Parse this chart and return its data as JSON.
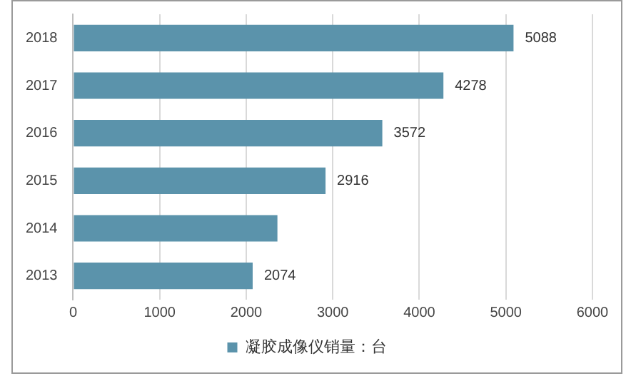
{
  "chart_data": {
    "type": "bar",
    "orientation": "horizontal",
    "categories": [
      "2018",
      "2017",
      "2016",
      "2015",
      "2014",
      "2013"
    ],
    "series": [
      {
        "name": "凝胶成像仪销量：台",
        "color": "#5b93ab",
        "values": [
          5088,
          4278,
          3572,
          2916,
          2360,
          2074
        ],
        "value_labels": [
          "5088",
          "4278",
          "3572",
          "2916",
          null,
          "2074"
        ]
      }
    ],
    "xlim": [
      0,
      6000
    ],
    "xticks": [
      0,
      1000,
      2000,
      3000,
      4000,
      5000,
      6000
    ],
    "grid": "x",
    "legend": "bottom"
  }
}
